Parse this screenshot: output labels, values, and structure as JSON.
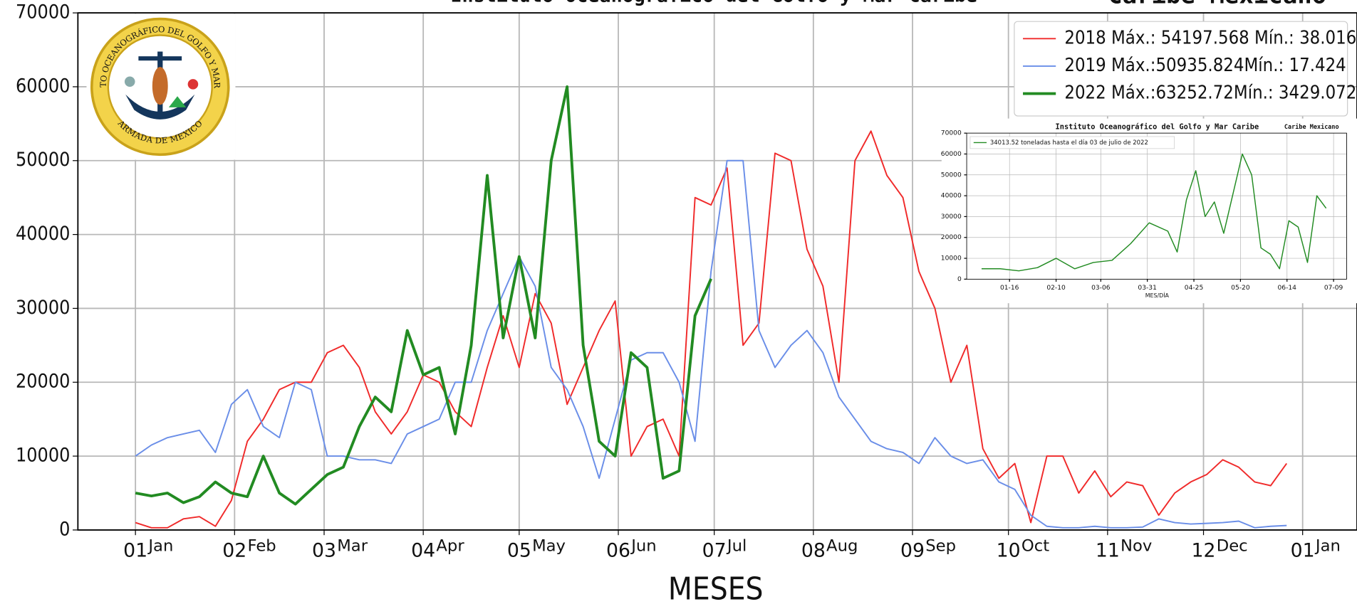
{
  "chart_data": [
    {
      "type": "line",
      "title": "Instituto Oceanográfico del Golfo y Mar Caribe",
      "title_right": "Caribe Mexicano",
      "xlabel": "MESES",
      "x": [
        0,
        5,
        10,
        15,
        20,
        25,
        30,
        35,
        40,
        45,
        50,
        55,
        60,
        65,
        70,
        75,
        80,
        85,
        90,
        95,
        100,
        105,
        110,
        115,
        120,
        125,
        130,
        135,
        140,
        145,
        150,
        155,
        160,
        165,
        170,
        175,
        180,
        185,
        190,
        195,
        200,
        205,
        210,
        215,
        220,
        225,
        230,
        235,
        240,
        245,
        250,
        255,
        260,
        265,
        270,
        275,
        280,
        285,
        290,
        295,
        300,
        305,
        310,
        315,
        320,
        325,
        330,
        335,
        340,
        345,
        350,
        355,
        360
      ],
      "series": [
        {
          "name": "2018 Máx.: 54197.568 Mín.: 38.016",
          "color": "#f02a2a",
          "width": 1.6,
          "values": [
            1000,
            300,
            300,
            1500,
            1800,
            500,
            4000,
            12000,
            15000,
            19000,
            20000,
            20000,
            24000,
            25000,
            22000,
            16000,
            13000,
            16000,
            21000,
            20000,
            16000,
            14000,
            22000,
            29000,
            22000,
            32000,
            28000,
            17000,
            22000,
            27000,
            31000,
            10000,
            14000,
            15000,
            10000,
            45000,
            44000,
            49000,
            25000,
            28000,
            51000,
            50000,
            38000,
            33000,
            20000,
            50000,
            54000,
            48000,
            45000,
            35000,
            30000,
            20000,
            25000,
            11000,
            7000,
            9000,
            1000,
            10000,
            10000,
            5000,
            8000,
            4500,
            6500,
            6000,
            2000,
            5000,
            6500,
            7500,
            9500,
            8500,
            6500,
            6000,
            9000
          ]
        },
        {
          "name": "2019 Máx.:50935.824Mín.: 17.424",
          "color": "#6a8ee8",
          "width": 1.6,
          "values": [
            10000,
            11500,
            12500,
            13000,
            13500,
            10500,
            17000,
            19000,
            14000,
            12500,
            20000,
            19000,
            10000,
            10000,
            9500,
            9500,
            9000,
            13000,
            14000,
            15000,
            20000,
            20000,
            27000,
            32000,
            37000,
            33000,
            22000,
            19000,
            14000,
            7000,
            15000,
            23000,
            24000,
            24000,
            20000,
            12000,
            35000,
            50000,
            50000,
            27000,
            22000,
            25000,
            27000,
            24000,
            18000,
            15000,
            12000,
            11000,
            10500,
            9000,
            12500,
            10000,
            9000,
            9500,
            6500,
            5500,
            2000,
            500,
            300,
            300,
            500,
            300,
            300,
            400,
            1500,
            1000,
            800,
            900,
            1000,
            1200,
            300,
            500,
            600
          ]
        },
        {
          "name": "2022 Máx.:63252.72Mín.: 3429.072",
          "color": "#228b22",
          "width": 3.2,
          "values": [
            5000,
            4600,
            5000,
            3700,
            4500,
            6500,
            5000,
            4500,
            10000,
            5000,
            3500,
            5500,
            7500,
            8500,
            14000,
            18000,
            16000,
            27000,
            21000,
            22000,
            13000,
            25000,
            48000,
            26000,
            37000,
            26000,
            50000,
            60000,
            25000,
            12000,
            10000,
            24000,
            22000,
            7000,
            8000,
            29000,
            34000,
            null,
            null,
            null,
            null,
            null,
            null,
            null,
            null,
            null,
            null,
            null,
            null,
            null,
            null,
            null,
            null,
            null,
            null,
            null,
            null,
            null,
            null,
            null,
            null,
            null,
            null,
            null,
            null,
            null,
            null,
            null,
            null,
            null,
            null,
            null,
            null
          ]
        }
      ],
      "xlim": [
        -18,
        382
      ],
      "xticks": [
        {
          "value": 0,
          "label": "01"
        },
        {
          "value": 31,
          "label": "02"
        },
        {
          "value": 59,
          "label": "03"
        },
        {
          "value": 90,
          "label": "04"
        },
        {
          "value": 120,
          "label": "05"
        },
        {
          "value": 151,
          "label": "06"
        },
        {
          "value": 181,
          "label": "07"
        },
        {
          "value": 212,
          "label": "08"
        },
        {
          "value": 243,
          "label": "09"
        },
        {
          "value": 273,
          "label": "10"
        },
        {
          "value": 304,
          "label": "11"
        },
        {
          "value": 334,
          "label": "12"
        },
        {
          "value": 365,
          "label": "01"
        }
      ],
      "xtick_months": [
        "Jan",
        "Feb",
        "Mar",
        "Apr",
        "May",
        "Jun",
        "Jul",
        "Aug",
        "Sep",
        "Oct",
        "Nov",
        "Dec",
        "Jan"
      ],
      "ylim": [
        0,
        70000
      ],
      "yticks": [
        0,
        10000,
        20000,
        30000,
        40000,
        50000,
        60000,
        70000
      ],
      "grid": true,
      "legend": "upper right"
    },
    {
      "type": "line",
      "title": "Instituto Oceanográfico del Golfo y Mar Caribe",
      "title_right": "Caribe Mexicano",
      "xlabel": "MES/DÍA",
      "x": [
        0,
        10,
        20,
        30,
        40,
        50,
        60,
        70,
        80,
        90,
        100,
        105,
        110,
        115,
        120,
        125,
        130,
        140,
        145,
        150,
        155,
        160,
        165,
        170,
        175,
        180,
        185
      ],
      "series": [
        {
          "name": "34013.52 toneladas hasta el día 03 de julio de 2022",
          "color": "#228b22",
          "width": 1.2,
          "values": [
            5000,
            5000,
            4000,
            5500,
            10000,
            5000,
            8000,
            9000,
            17000,
            27000,
            23000,
            13000,
            38000,
            52000,
            30000,
            37000,
            22000,
            60000,
            50000,
            15000,
            12000,
            5000,
            28000,
            25000,
            8000,
            40000,
            34000
          ]
        }
      ],
      "xlim": [
        -8,
        196
      ],
      "xticks": [
        {
          "value": 15,
          "label": "01-16"
        },
        {
          "value": 40,
          "label": "02-10"
        },
        {
          "value": 64,
          "label": "03-06"
        },
        {
          "value": 89,
          "label": "03-31"
        },
        {
          "value": 114,
          "label": "04-25"
        },
        {
          "value": 139,
          "label": "05-20"
        },
        {
          "value": 164,
          "label": "06-14"
        },
        {
          "value": 189,
          "label": "07-09"
        }
      ],
      "ylim": [
        0,
        70000
      ],
      "yticks": [
        0,
        10000,
        20000,
        30000,
        40000,
        50000,
        60000,
        70000
      ],
      "grid": true,
      "legend": "upper left"
    }
  ],
  "logo": {
    "ring_top": "INSTITUTO OCEANOGRÁFICO DEL GOLFO Y MAR CARIBE",
    "ring_bottom": "ARMADA DE MEXICO"
  }
}
